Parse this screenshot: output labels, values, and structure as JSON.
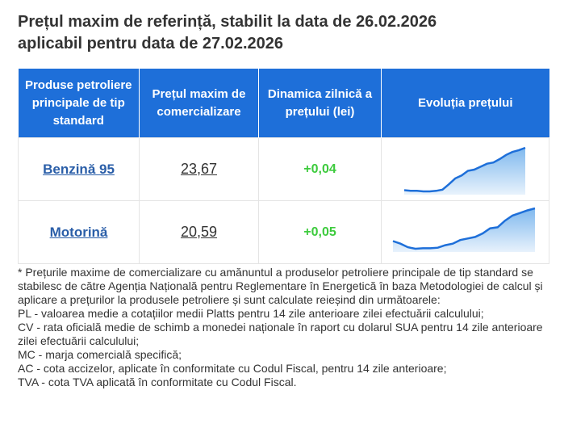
{
  "header": {
    "title_line1": "Prețul maxim de referință, stabilit la data de 26.02.2026",
    "title_line2": "aplicabil pentru data de 27.02.2026"
  },
  "table": {
    "columns": [
      "Produse petroliere principale de tip standard",
      "Prețul maxim de comercializare",
      "Dinamica zilnică a prețului (lei)",
      "Evoluția prețului"
    ],
    "rows": [
      {
        "product": "Benzină 95",
        "price": "23,67",
        "change": "+0,04",
        "trend": [
          22.95,
          22.94,
          22.94,
          22.93,
          22.93,
          22.94,
          22.96,
          23.05,
          23.15,
          23.2,
          23.28,
          23.3,
          23.35,
          23.4,
          23.42,
          23.48,
          23.55,
          23.6,
          23.63,
          23.67
        ]
      },
      {
        "product": "Motorină",
        "price": "20,59",
        "change": "+0,05",
        "trend": [
          19.95,
          19.9,
          19.83,
          19.8,
          19.81,
          19.81,
          19.82,
          19.87,
          19.9,
          19.97,
          20.0,
          20.03,
          20.1,
          20.2,
          20.22,
          20.35,
          20.45,
          20.5,
          20.55,
          20.59
        ]
      }
    ]
  },
  "notes": [
    "* Prețurile maxime de comercializare cu amănuntul a produselor petroliere principale de tip standard se stabilesc de către Agenția Națională pentru Reglementare în Energetică în baza Metodologiei de calcul și aplicare a prețurilor la produsele petroliere și sunt calculate reieșind din următoarele:",
    "PL - valoarea medie a cotațiilor medii Platts pentru 14 zile anterioare zilei efectuării calculului;",
    "CV - rata oficială medie de schimb a monedei naționale în raport cu dolarul SUA pentru 14 zile anterioare zilei efectuării calculului;",
    "MC - marja comercială specifică;",
    "AC - cota accizelor, aplicate în conformitate cu Codul Fiscal, pentru 14 zile anterioare;",
    "TVA - cota TVA aplicată în conformitate cu Codul Fiscal."
  ]
}
